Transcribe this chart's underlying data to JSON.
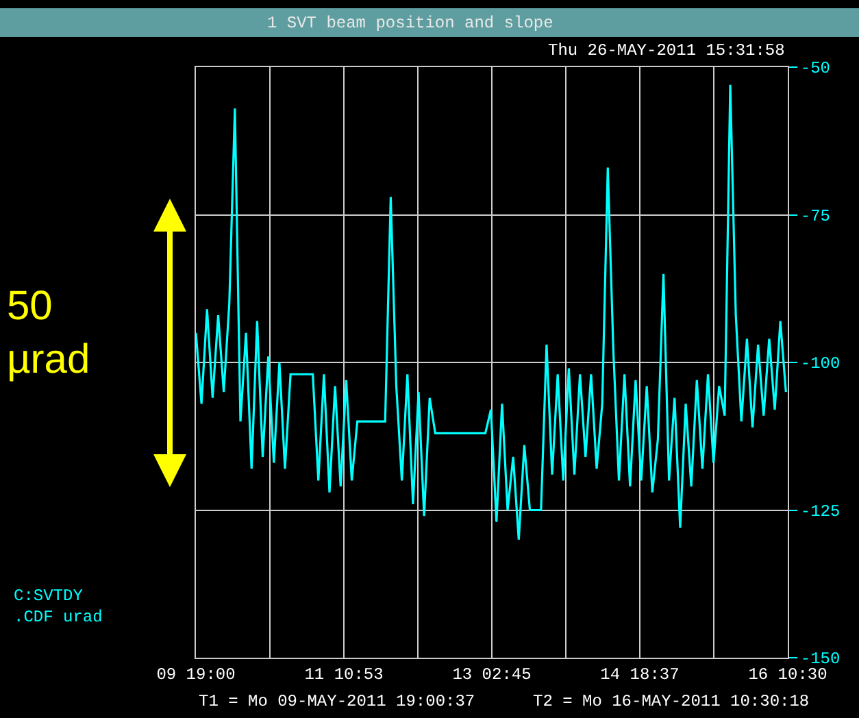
{
  "chart_data": {
    "type": "line",
    "title": "1 SVT beam position and slope",
    "subtitle": "Thu 26-MAY-2011 15:31:58",
    "ylabel": "C:SVTDY\n.CDF urad",
    "annotations": [
      "T1 = Mo 09-MAY-2011 19:00:37",
      "T2 = Mo 16-MAY-2011 10:30:18",
      "50\nµrad"
    ],
    "x": [
      "2011-05-09T19:00",
      "2011-05-09T20:30",
      "2011-05-09T22:00",
      "2011-05-09T23:30",
      "2011-05-10T01:00",
      "2011-05-10T02:30",
      "2011-05-10T04:00",
      "2011-05-10T05:30",
      "2011-05-10T07:00",
      "2011-05-10T08:30",
      "2011-05-10T10:00",
      "2011-05-10T11:30",
      "2011-05-10T13:00",
      "2011-05-10T14:30",
      "2011-05-10T16:00",
      "2011-05-10T17:30",
      "2011-05-10T19:00",
      "2011-05-10T20:30",
      "2011-05-10T22:00",
      "2011-05-10T23:30",
      "2011-05-11T01:00",
      "2011-05-11T02:30",
      "2011-05-11T04:00",
      "2011-05-11T05:30",
      "2011-05-11T07:00",
      "2011-05-11T08:30",
      "2011-05-11T10:00",
      "2011-05-11T11:30",
      "2011-05-11T13:00",
      "2011-05-11T14:30",
      "2011-05-11T16:00",
      "2011-05-11T17:30",
      "2011-05-11T19:00",
      "2011-05-11T20:30",
      "2011-05-11T22:00",
      "2011-05-11T23:30",
      "2011-05-12T01:00",
      "2011-05-12T02:30",
      "2011-05-12T04:00",
      "2011-05-12T05:30",
      "2011-05-12T07:00",
      "2011-05-12T08:30",
      "2011-05-12T10:00",
      "2011-05-12T11:30",
      "2011-05-12T13:00",
      "2011-05-12T14:30",
      "2011-05-12T16:00",
      "2011-05-12T17:30",
      "2011-05-12T19:00",
      "2011-05-12T20:30",
      "2011-05-12T22:00",
      "2011-05-12T23:30",
      "2011-05-13T01:00",
      "2011-05-13T02:30",
      "2011-05-13T04:00",
      "2011-05-13T05:30",
      "2011-05-13T07:00",
      "2011-05-13T08:30",
      "2011-05-13T10:00",
      "2011-05-13T11:30",
      "2011-05-13T13:00",
      "2011-05-13T14:30",
      "2011-05-13T16:00",
      "2011-05-13T17:30",
      "2011-05-13T19:00",
      "2011-05-13T20:30",
      "2011-05-13T22:00",
      "2011-05-13T23:30",
      "2011-05-14T01:00",
      "2011-05-14T02:30",
      "2011-05-14T04:00",
      "2011-05-14T05:30",
      "2011-05-14T07:00",
      "2011-05-14T08:30",
      "2011-05-14T10:00",
      "2011-05-14T11:30",
      "2011-05-14T13:00",
      "2011-05-14T14:30",
      "2011-05-14T16:00",
      "2011-05-14T17:30",
      "2011-05-14T19:00",
      "2011-05-14T20:30",
      "2011-05-14T22:00",
      "2011-05-14T23:30",
      "2011-05-15T01:00",
      "2011-05-15T02:30",
      "2011-05-15T04:00",
      "2011-05-15T05:30",
      "2011-05-15T07:00",
      "2011-05-15T08:30",
      "2011-05-15T10:00",
      "2011-05-15T11:30",
      "2011-05-15T13:00",
      "2011-05-15T14:30",
      "2011-05-15T16:00",
      "2011-05-15T17:30",
      "2011-05-15T19:00",
      "2011-05-15T20:30",
      "2011-05-15T22:00",
      "2011-05-15T23:30",
      "2011-05-16T01:00",
      "2011-05-16T02:30",
      "2011-05-16T04:00",
      "2011-05-16T05:30",
      "2011-05-16T07:00",
      "2011-05-16T08:30",
      "2011-05-16T10:00"
    ],
    "series": [
      {
        "color": "#00ffff",
        "values": [
          -95,
          -107,
          -91,
          -106,
          -92,
          -105,
          -90,
          -57,
          -110,
          -95,
          -118,
          -93,
          -116,
          -99,
          -117,
          -100,
          -118,
          -102,
          -102,
          -102,
          -102,
          -102,
          -120,
          -102,
          -122,
          -104,
          -121,
          -103,
          -120,
          -110,
          -110,
          -110,
          -110,
          -110,
          -110,
          -72,
          -104,
          -120,
          -102,
          -124,
          -105,
          -126,
          -106,
          -112,
          -112,
          -112,
          -112,
          -112,
          -112,
          -112,
          -112,
          -112,
          -112,
          -108,
          -127,
          -107,
          -125,
          -116,
          -130,
          -114,
          -125,
          -125,
          -125,
          -97,
          -119,
          -102,
          -120,
          -101,
          -119,
          -102,
          -116,
          -102,
          -118,
          -107,
          -67,
          -98,
          -120,
          -102,
          -121,
          -103,
          -120,
          -104,
          -122,
          -113,
          -85,
          -120,
          -106,
          -128,
          -107,
          -121,
          -103,
          -118,
          -102,
          -117,
          -104,
          -109,
          -53,
          -92,
          -110,
          -96,
          -111,
          -97,
          -109,
          -96,
          -108,
          -93,
          -105
        ]
      }
    ],
    "xlim": [
      "2011-05-09T19:00",
      "2011-05-16T10:30"
    ],
    "xticks": [
      {
        "value": "2011-05-09T19:00",
        "label": "09 19:00"
      },
      {
        "value": "2011-05-10T14:56",
        "label": null
      },
      {
        "value": "2011-05-11T10:53",
        "label": "11 10:53"
      },
      {
        "value": "2011-05-12T06:49",
        "label": null
      },
      {
        "value": "2011-05-13T02:45",
        "label": "13 02:45"
      },
      {
        "value": "2011-05-13T22:41",
        "label": null
      },
      {
        "value": "2011-05-14T18:37",
        "label": "14 18:37"
      },
      {
        "value": "2011-05-15T14:34",
        "label": null
      },
      {
        "value": "2011-05-16T10:30",
        "label": "16 10:30"
      }
    ],
    "ylim": [
      -150,
      -50
    ],
    "yticks": [
      -50,
      -75,
      -100,
      -125,
      -150
    ],
    "grid": true,
    "marker": "none",
    "line_style": "solid"
  }
}
